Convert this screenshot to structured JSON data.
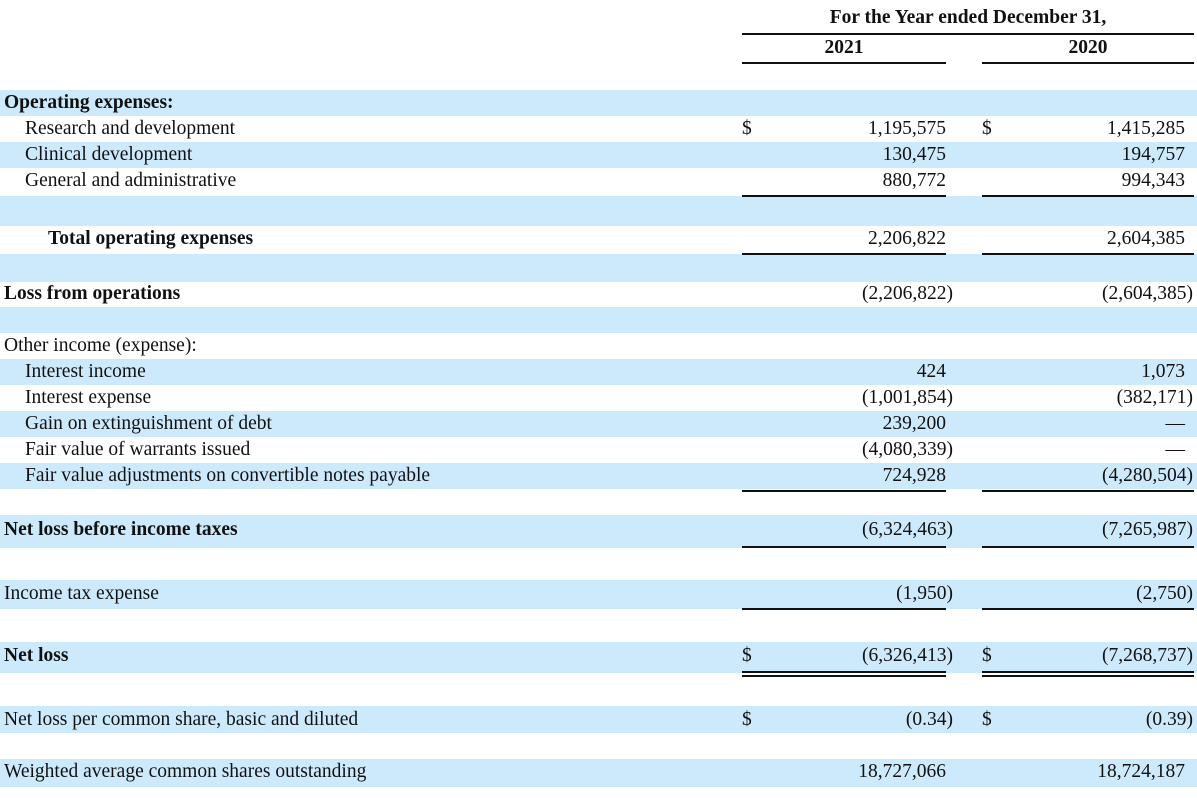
{
  "header": {
    "period_label": "For the Year ended December 31,",
    "years": [
      "2021",
      "2020"
    ]
  },
  "currency_symbol": "$",
  "rows": [
    {
      "label": "Operating expenses:",
      "y2021": "",
      "y2020": ""
    },
    {
      "label": "Research and development",
      "y2021": "1,195,575",
      "y2020": "1,415,285"
    },
    {
      "label": "Clinical development",
      "y2021": "130,475",
      "y2020": "194,757"
    },
    {
      "label": "General and administrative",
      "y2021": "880,772",
      "y2020": "994,343"
    },
    {
      "label": "Total operating expenses",
      "y2021": "2,206,822",
      "y2020": "2,604,385"
    },
    {
      "label": "Loss from operations",
      "y2021": "(2,206,822)",
      "y2020": "(2,604,385)"
    },
    {
      "label": "Other income (expense):",
      "y2021": "",
      "y2020": ""
    },
    {
      "label": "Interest income",
      "y2021": "424",
      "y2020": "1,073"
    },
    {
      "label": "Interest expense",
      "y2021": "(1,001,854)",
      "y2020": "(382,171)"
    },
    {
      "label": "Gain on extinguishment of debt",
      "y2021": "239,200",
      "y2020": "—"
    },
    {
      "label": "Fair value of warrants issued",
      "y2021": "(4,080,339)",
      "y2020": "—"
    },
    {
      "label": "Fair value adjustments on convertible notes payable",
      "y2021": "724,928",
      "y2020": "(4,280,504)"
    },
    {
      "label": "Net loss before income taxes",
      "y2021": "(6,324,463)",
      "y2020": "(7,265,987)"
    },
    {
      "label": "Income tax expense",
      "y2021": "(1,950)",
      "y2020": "(2,750)"
    },
    {
      "label": "Net loss",
      "y2021": "(6,326,413)",
      "y2020": "(7,268,737)"
    },
    {
      "label": "Net loss per common share, basic and diluted",
      "y2021": "(0.34)",
      "y2020": "(0.39)"
    },
    {
      "label": "Weighted average common shares outstanding",
      "y2021": "18,727,066",
      "y2020": "18,724,187"
    }
  ],
  "colors": {
    "row_shading": "#cdeafc",
    "text": "#111111",
    "rules": "#111111"
  }
}
